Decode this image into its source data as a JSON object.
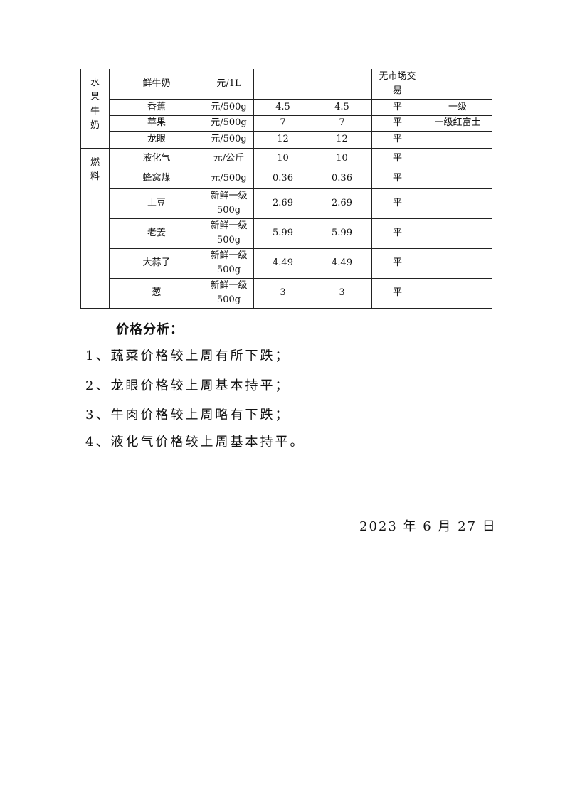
{
  "table": {
    "groups": [
      {
        "category": "水果牛奶",
        "rows": [
          {
            "name": "鲜牛奶",
            "unit": "元/1L",
            "this_week": "",
            "last_week": "",
            "trend": "无市场交易",
            "note": ""
          },
          {
            "name": "香蕉",
            "unit": "元/500g",
            "this_week": "4.5",
            "last_week": "4.5",
            "trend": "平",
            "note": "一级"
          },
          {
            "name": "苹果",
            "unit": "元/500g",
            "this_week": "7",
            "last_week": "7",
            "trend": "平",
            "note": "一级红富士"
          },
          {
            "name": "龙眼",
            "unit": "元/500g",
            "this_week": "12",
            "last_week": "12",
            "trend": "平",
            "note": ""
          }
        ]
      },
      {
        "category": "燃料",
        "rows": [
          {
            "name": "液化气",
            "unit": "元/公斤",
            "this_week": "10",
            "last_week": "10",
            "trend": "平",
            "note": ""
          },
          {
            "name": "蜂窝煤",
            "unit": "元/500g",
            "this_week": "0.36",
            "last_week": "0.36",
            "trend": "平",
            "note": ""
          },
          {
            "name": "土豆",
            "unit": "新鲜一级500g",
            "this_week": "2.69",
            "last_week": "2.69",
            "trend": "平",
            "note": ""
          },
          {
            "name": "老姜",
            "unit": "新鲜一级500g",
            "this_week": "5.99",
            "last_week": "5.99",
            "trend": "平",
            "note": ""
          },
          {
            "name": "大蒜子",
            "unit": "新鲜一级500g",
            "this_week": "4.49",
            "last_week": "4.49",
            "trend": "平",
            "note": ""
          },
          {
            "name": "葱",
            "unit": "新鲜一级500g",
            "this_week": "3",
            "last_week": "3",
            "trend": "平",
            "note": ""
          }
        ]
      }
    ]
  },
  "analysis": {
    "heading": "价格分析：",
    "items": [
      "1、蔬菜价格较上周有所下跌；",
      "2、龙眼价格较上周基本持平；",
      "3、牛肉价格较上周略有下跌；",
      "4、液化气价格较上周基本持平。"
    ]
  },
  "date": "2023 年 6 月 27 日"
}
